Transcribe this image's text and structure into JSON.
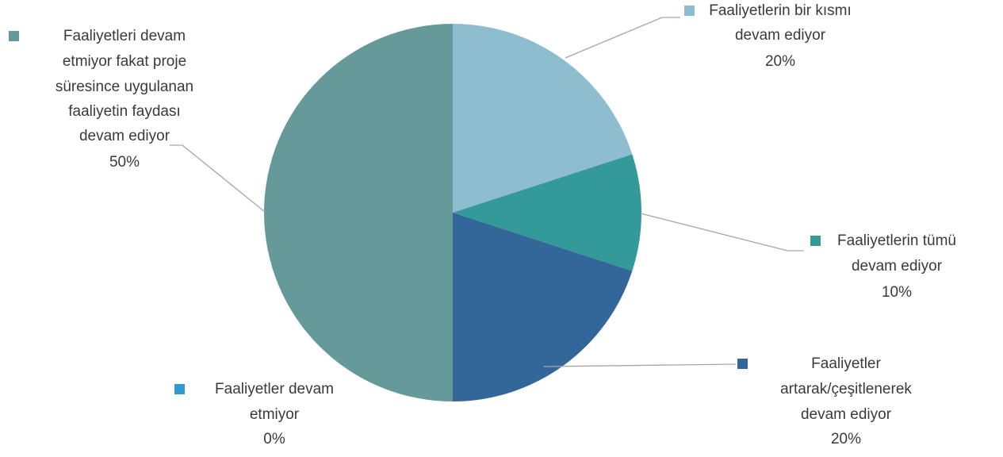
{
  "chart_data": {
    "type": "pie",
    "title": "",
    "slices": [
      {
        "label_lines": [
          "Faaliyetlerin bir kısmı",
          "devam ediyor"
        ],
        "value": 20,
        "value_label": "20%",
        "color": "#8dbdcf"
      },
      {
        "label_lines": [
          "Faaliyetlerin tümü",
          "devam ediyor"
        ],
        "value": 10,
        "value_label": "10%",
        "color": "#339999"
      },
      {
        "label_lines": [
          "Faaliyetler",
          "artarak/çeşitlenerek",
          "devam ediyor"
        ],
        "value": 20,
        "value_label": "20%",
        "color": "#336699"
      },
      {
        "label_lines": [
          "Faaliyetler devam",
          "etmiyor"
        ],
        "value": 0,
        "value_label": "0%",
        "color": "#3399cc"
      },
      {
        "label_lines": [
          "Faaliyetleri devam",
          "etmiyor fakat proje",
          "süresince uygulanan",
          "faaliyetin faydası",
          "devam ediyor"
        ],
        "value": 50,
        "value_label": "50%",
        "color": "#669999"
      }
    ]
  }
}
